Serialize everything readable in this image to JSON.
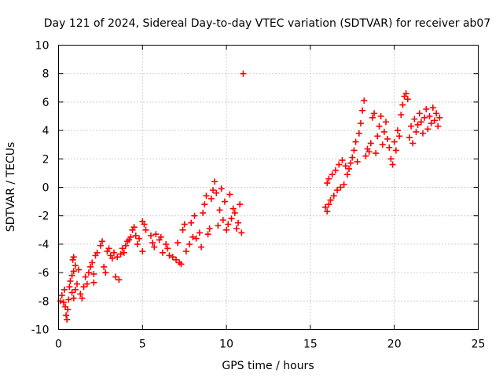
{
  "chart_data": {
    "type": "scatter",
    "title": "Day 121 of 2024, Sidereal Day-to-day VTEC variation (SDTVAR) for receiver ab07",
    "xlabel": "GPS time / hours",
    "ylabel": "SDTVAR / TECUs",
    "xlim": [
      0,
      25
    ],
    "ylim": [
      -10,
      10
    ],
    "xticks": [
      "0",
      "5",
      "10",
      "15",
      "20",
      "25"
    ],
    "yticks": [
      "-10",
      "-8",
      "-6",
      "-4",
      "-2",
      "0",
      "2",
      "4",
      "6",
      "8",
      "10"
    ],
    "grid": true,
    "marker": "plus",
    "color": "#ff0000",
    "series": [
      {
        "name": "",
        "points": [
          [
            0.1,
            -8.0
          ],
          [
            0.2,
            -7.6
          ],
          [
            0.3,
            -8.1
          ],
          [
            0.35,
            -7.2
          ],
          [
            0.4,
            -8.4
          ],
          [
            0.45,
            -9.0
          ],
          [
            0.5,
            -9.3
          ],
          [
            0.55,
            -8.6
          ],
          [
            0.6,
            -7.9
          ],
          [
            0.65,
            -7.0
          ],
          [
            0.7,
            -6.6
          ],
          [
            0.8,
            -7.4
          ],
          [
            0.9,
            -7.8
          ],
          [
            1.0,
            -7.2
          ],
          [
            1.1,
            -6.8
          ],
          [
            0.8,
            -6.2
          ],
          [
            0.9,
            -5.9
          ],
          [
            1.0,
            -5.5
          ],
          [
            0.85,
            -5.1
          ],
          [
            0.9,
            -4.9
          ],
          [
            1.2,
            -5.8
          ],
          [
            1.3,
            -7.5
          ],
          [
            1.4,
            -7.8
          ],
          [
            1.5,
            -7.0
          ],
          [
            1.6,
            -6.3
          ],
          [
            1.7,
            -6.8
          ],
          [
            1.8,
            -6.0
          ],
          [
            1.9,
            -5.6
          ],
          [
            2.0,
            -5.3
          ],
          [
            2.1,
            -6.1
          ],
          [
            2.2,
            -4.8
          ],
          [
            2.3,
            -4.6
          ],
          [
            2.1,
            -6.7
          ],
          [
            2.5,
            -4.1
          ],
          [
            2.6,
            -3.8
          ],
          [
            2.7,
            -5.6
          ],
          [
            2.8,
            -6.0
          ],
          [
            2.9,
            -4.5
          ],
          [
            3.0,
            -4.3
          ],
          [
            3.1,
            -4.8
          ],
          [
            3.2,
            -5.0
          ],
          [
            3.3,
            -4.6
          ],
          [
            3.4,
            -6.3
          ],
          [
            3.5,
            -4.9
          ],
          [
            3.6,
            -6.5
          ],
          [
            3.7,
            -4.7
          ],
          [
            3.8,
            -4.3
          ],
          [
            3.9,
            -4.6
          ],
          [
            4.0,
            -4.1
          ],
          [
            4.1,
            -3.8
          ],
          [
            4.2,
            -3.7
          ],
          [
            4.3,
            -3.5
          ],
          [
            4.4,
            -3.0
          ],
          [
            4.5,
            -2.8
          ],
          [
            4.6,
            -3.4
          ],
          [
            4.7,
            -4.0
          ],
          [
            4.8,
            -3.6
          ],
          [
            5.0,
            -2.4
          ],
          [
            5.1,
            -2.6
          ],
          [
            5.2,
            -3.0
          ],
          [
            5.0,
            -4.5
          ],
          [
            5.5,
            -3.4
          ],
          [
            5.6,
            -3.9
          ],
          [
            5.7,
            -4.2
          ],
          [
            5.8,
            -3.3
          ],
          [
            6.0,
            -3.7
          ],
          [
            6.1,
            -3.5
          ],
          [
            6.2,
            -4.6
          ],
          [
            6.4,
            -4.0
          ],
          [
            6.5,
            -4.3
          ],
          [
            6.6,
            -4.8
          ],
          [
            6.8,
            -4.9
          ],
          [
            7.0,
            -5.1
          ],
          [
            7.2,
            -5.3
          ],
          [
            7.3,
            -5.4
          ],
          [
            7.1,
            -3.9
          ],
          [
            7.4,
            -3.0
          ],
          [
            7.5,
            -2.6
          ],
          [
            7.6,
            -4.5
          ],
          [
            7.8,
            -4.0
          ],
          [
            8.0,
            -3.5
          ],
          [
            7.9,
            -2.5
          ],
          [
            8.1,
            -2.0
          ],
          [
            8.2,
            -3.6
          ],
          [
            8.4,
            -3.2
          ],
          [
            8.5,
            -4.2
          ],
          [
            8.6,
            -1.8
          ],
          [
            8.7,
            -1.2
          ],
          [
            8.8,
            -0.6
          ],
          [
            8.9,
            -3.3
          ],
          [
            9.0,
            -2.9
          ],
          [
            9.1,
            -0.8
          ],
          [
            9.2,
            -0.2
          ],
          [
            9.3,
            0.4
          ],
          [
            9.4,
            -0.4
          ],
          [
            9.5,
            -2.7
          ],
          [
            9.6,
            -1.6
          ],
          [
            9.7,
            -0.1
          ],
          [
            9.8,
            -2.3
          ],
          [
            9.9,
            -1.0
          ],
          [
            10.0,
            -3.0
          ],
          [
            10.1,
            -2.6
          ],
          [
            10.2,
            -0.5
          ],
          [
            10.3,
            -2.2
          ],
          [
            10.4,
            -1.5
          ],
          [
            10.5,
            -1.8
          ],
          [
            10.6,
            -2.9
          ],
          [
            10.7,
            -2.5
          ],
          [
            10.8,
            -1.2
          ],
          [
            10.9,
            -3.2
          ],
          [
            11.0,
            8.0
          ],
          [
            15.9,
            -1.4
          ],
          [
            16.0,
            -1.7
          ],
          [
            16.1,
            -1.2
          ],
          [
            16.2,
            -0.9
          ],
          [
            16.0,
            0.3
          ],
          [
            16.1,
            0.6
          ],
          [
            16.3,
            0.9
          ],
          [
            16.4,
            -0.6
          ],
          [
            16.5,
            1.2
          ],
          [
            16.6,
            -0.2
          ],
          [
            16.7,
            1.6
          ],
          [
            16.8,
            0.0
          ],
          [
            16.9,
            1.9
          ],
          [
            17.0,
            0.2
          ],
          [
            17.1,
            1.5
          ],
          [
            17.2,
            0.9
          ],
          [
            17.3,
            1.3
          ],
          [
            17.4,
            1.7
          ],
          [
            17.5,
            2.1
          ],
          [
            17.6,
            2.6
          ],
          [
            17.7,
            3.2
          ],
          [
            17.8,
            1.8
          ],
          [
            17.9,
            3.8
          ],
          [
            18.0,
            4.5
          ],
          [
            18.1,
            5.4
          ],
          [
            18.2,
            6.1
          ],
          [
            18.3,
            2.2
          ],
          [
            18.4,
            2.7
          ],
          [
            18.5,
            2.5
          ],
          [
            18.6,
            3.1
          ],
          [
            18.7,
            4.9
          ],
          [
            18.8,
            5.2
          ],
          [
            18.9,
            2.4
          ],
          [
            19.0,
            3.6
          ],
          [
            19.1,
            4.3
          ],
          [
            19.2,
            5.0
          ],
          [
            19.3,
            3.0
          ],
          [
            19.4,
            3.9
          ],
          [
            19.5,
            4.6
          ],
          [
            19.6,
            3.4
          ],
          [
            19.7,
            2.8
          ],
          [
            19.8,
            2.0
          ],
          [
            19.9,
            1.6
          ],
          [
            20.0,
            3.2
          ],
          [
            20.1,
            2.6
          ],
          [
            20.2,
            4.0
          ],
          [
            20.3,
            3.6
          ],
          [
            20.4,
            5.1
          ],
          [
            20.5,
            5.8
          ],
          [
            20.6,
            6.4
          ],
          [
            20.7,
            6.6
          ],
          [
            20.8,
            6.2
          ],
          [
            20.9,
            3.5
          ],
          [
            21.0,
            4.3
          ],
          [
            21.1,
            3.1
          ],
          [
            21.2,
            4.8
          ],
          [
            21.3,
            3.9
          ],
          [
            21.4,
            4.4
          ],
          [
            21.5,
            5.2
          ],
          [
            21.6,
            4.6
          ],
          [
            21.7,
            3.8
          ],
          [
            21.8,
            4.9
          ],
          [
            21.9,
            5.5
          ],
          [
            22.0,
            4.1
          ],
          [
            22.1,
            5.0
          ],
          [
            22.2,
            4.5
          ],
          [
            22.3,
            5.6
          ],
          [
            22.4,
            4.7
          ],
          [
            22.5,
            5.2
          ],
          [
            22.6,
            4.3
          ],
          [
            22.7,
            4.9
          ]
        ]
      }
    ]
  }
}
